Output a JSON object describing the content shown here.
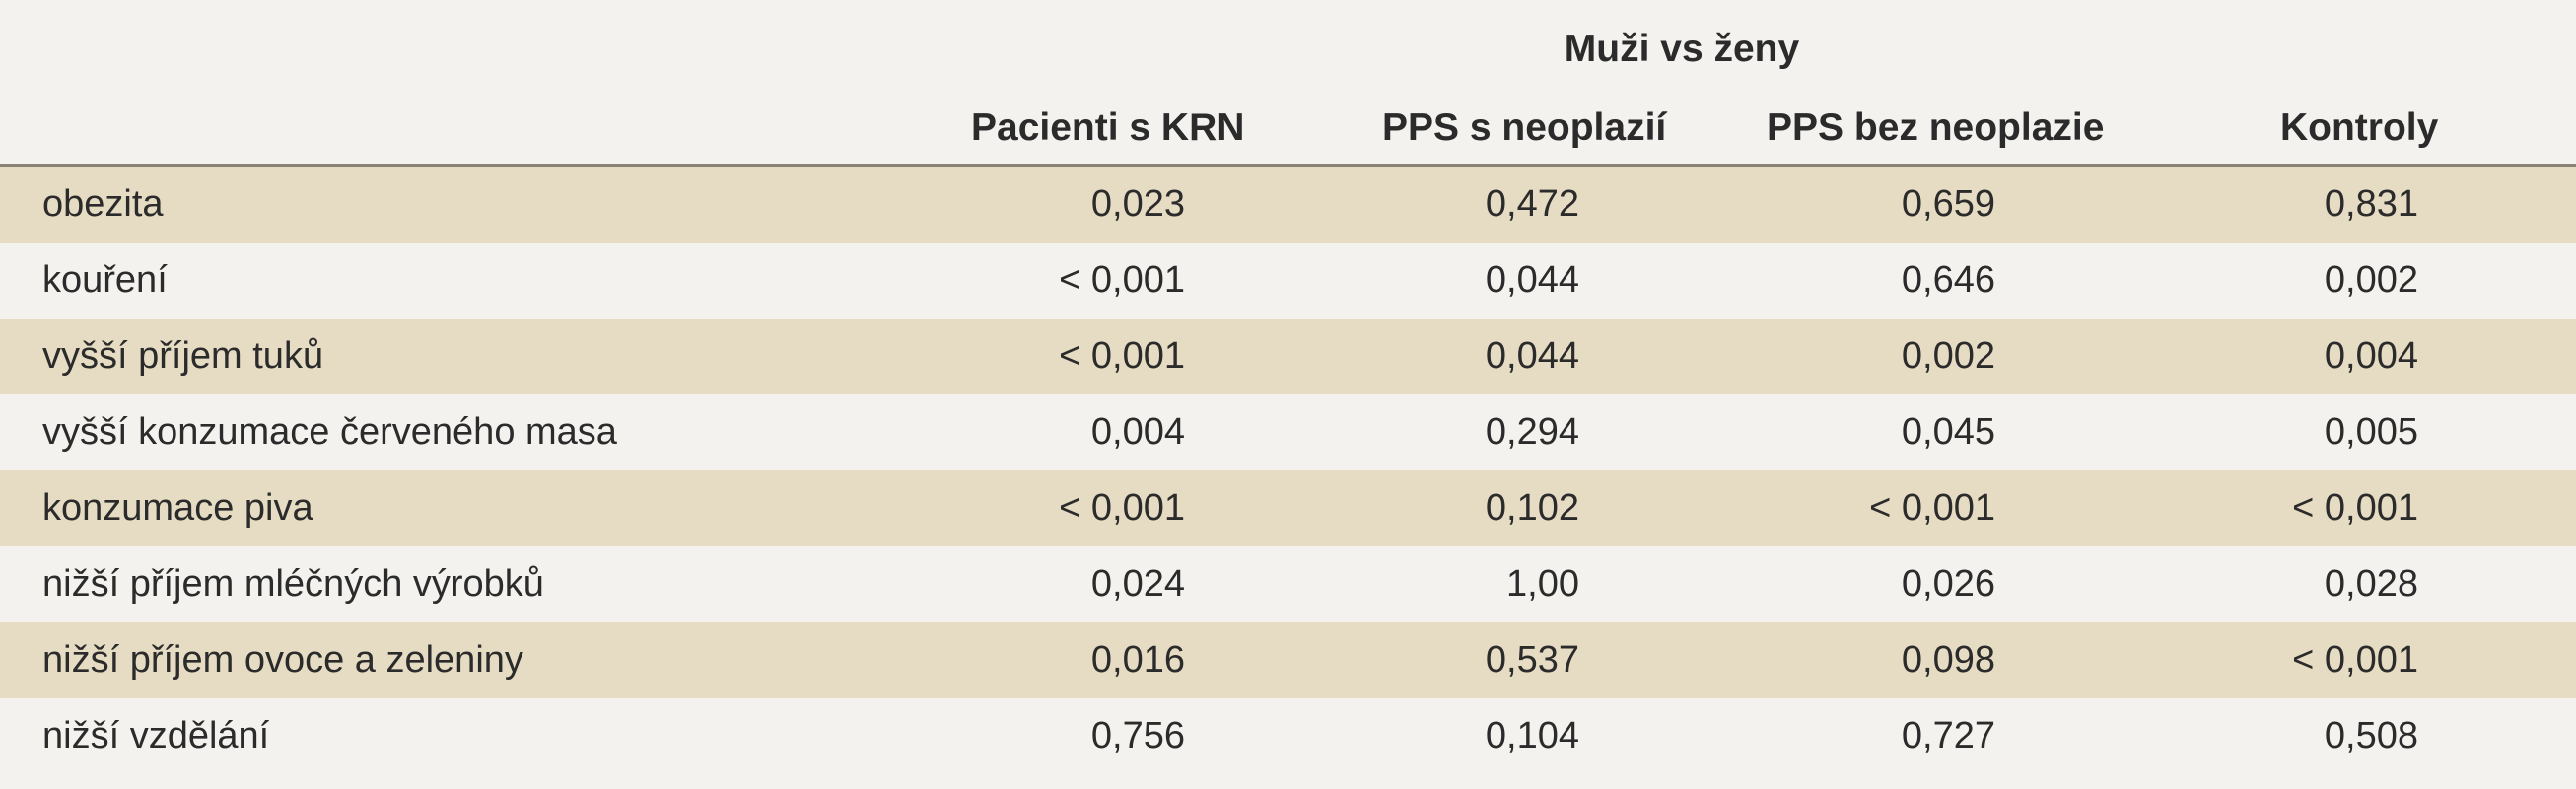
{
  "table": {
    "group_header": "Muži vs ženy",
    "columns": [
      "Pacienti s KRN",
      "PPS s neoplazií",
      "PPS bez neoplazie",
      "Kontroly"
    ],
    "rows": [
      {
        "label": "obezita",
        "values": [
          "0,023",
          "0,472",
          "0,659",
          "0,831"
        ]
      },
      {
        "label": "kouření",
        "values": [
          "< 0,001",
          "0,044",
          "0,646",
          "0,002"
        ]
      },
      {
        "label": "vyšší příjem tuků",
        "values": [
          "< 0,001",
          "0,044",
          "0,002",
          "0,004"
        ]
      },
      {
        "label": "vyšší konzumace červeného masa",
        "values": [
          "0,004",
          "0,294",
          "0,045",
          "0,005"
        ]
      },
      {
        "label": "konzumace piva",
        "values": [
          "< 0,001",
          "0,102",
          "< 0,001",
          "< 0,001"
        ]
      },
      {
        "label": "nižší příjem mléčných výrobků",
        "values": [
          "0,024",
          "1,00",
          "0,026",
          "0,028"
        ]
      },
      {
        "label": "nižší příjem ovoce a zeleniny",
        "values": [
          "0,016",
          "0,537",
          "0,098",
          "< 0,001"
        ]
      },
      {
        "label": "nižší vzdělání",
        "values": [
          "0,756",
          "0,104",
          "0,727",
          "0,508"
        ]
      }
    ]
  }
}
